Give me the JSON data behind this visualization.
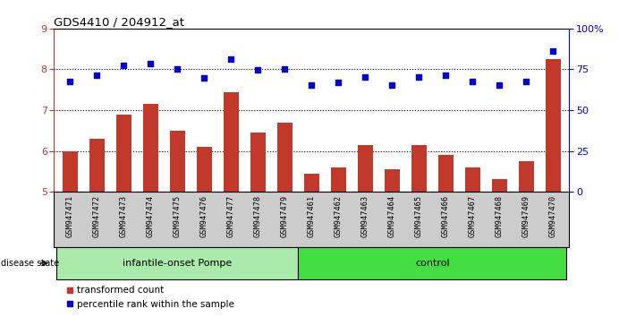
{
  "title": "GDS4410 / 204912_at",
  "samples": [
    "GSM947471",
    "GSM947472",
    "GSM947473",
    "GSM947474",
    "GSM947475",
    "GSM947476",
    "GSM947477",
    "GSM947478",
    "GSM947479",
    "GSM947461",
    "GSM947462",
    "GSM947463",
    "GSM947464",
    "GSM947465",
    "GSM947466",
    "GSM947467",
    "GSM947468",
    "GSM947469",
    "GSM947470"
  ],
  "bar_values": [
    6.0,
    6.3,
    6.9,
    7.15,
    6.5,
    6.1,
    7.45,
    6.45,
    6.7,
    5.45,
    5.6,
    6.15,
    5.55,
    6.15,
    5.9,
    5.6,
    5.3,
    5.75,
    8.25
  ],
  "dot_values": [
    7.7,
    7.85,
    8.1,
    8.15,
    8.0,
    7.78,
    8.25,
    7.98,
    8.02,
    7.62,
    7.68,
    7.82,
    7.62,
    7.82,
    7.85,
    7.7,
    7.62,
    7.7,
    8.45
  ],
  "bar_color": "#c0392b",
  "dot_color": "#0000cc",
  "ylim_left": [
    5,
    9
  ],
  "yticks_left": [
    5,
    6,
    7,
    8,
    9
  ],
  "yticks_right": [
    0,
    25,
    50,
    75,
    100
  ],
  "ylabel_right_labels": [
    "0",
    "25",
    "50",
    "75",
    "100%"
  ],
  "group1_label": "infantile-onset Pompe",
  "group2_label": "control",
  "group1_count": 9,
  "group2_count": 10,
  "disease_state_label": "disease state",
  "legend_bar_label": "transformed count",
  "legend_dot_label": "percentile rank within the sample",
  "plot_bg": "#ffffff",
  "group1_bg": "#aaeaaa",
  "group2_bg": "#44dd44",
  "tick_area_bg": "#cccccc"
}
